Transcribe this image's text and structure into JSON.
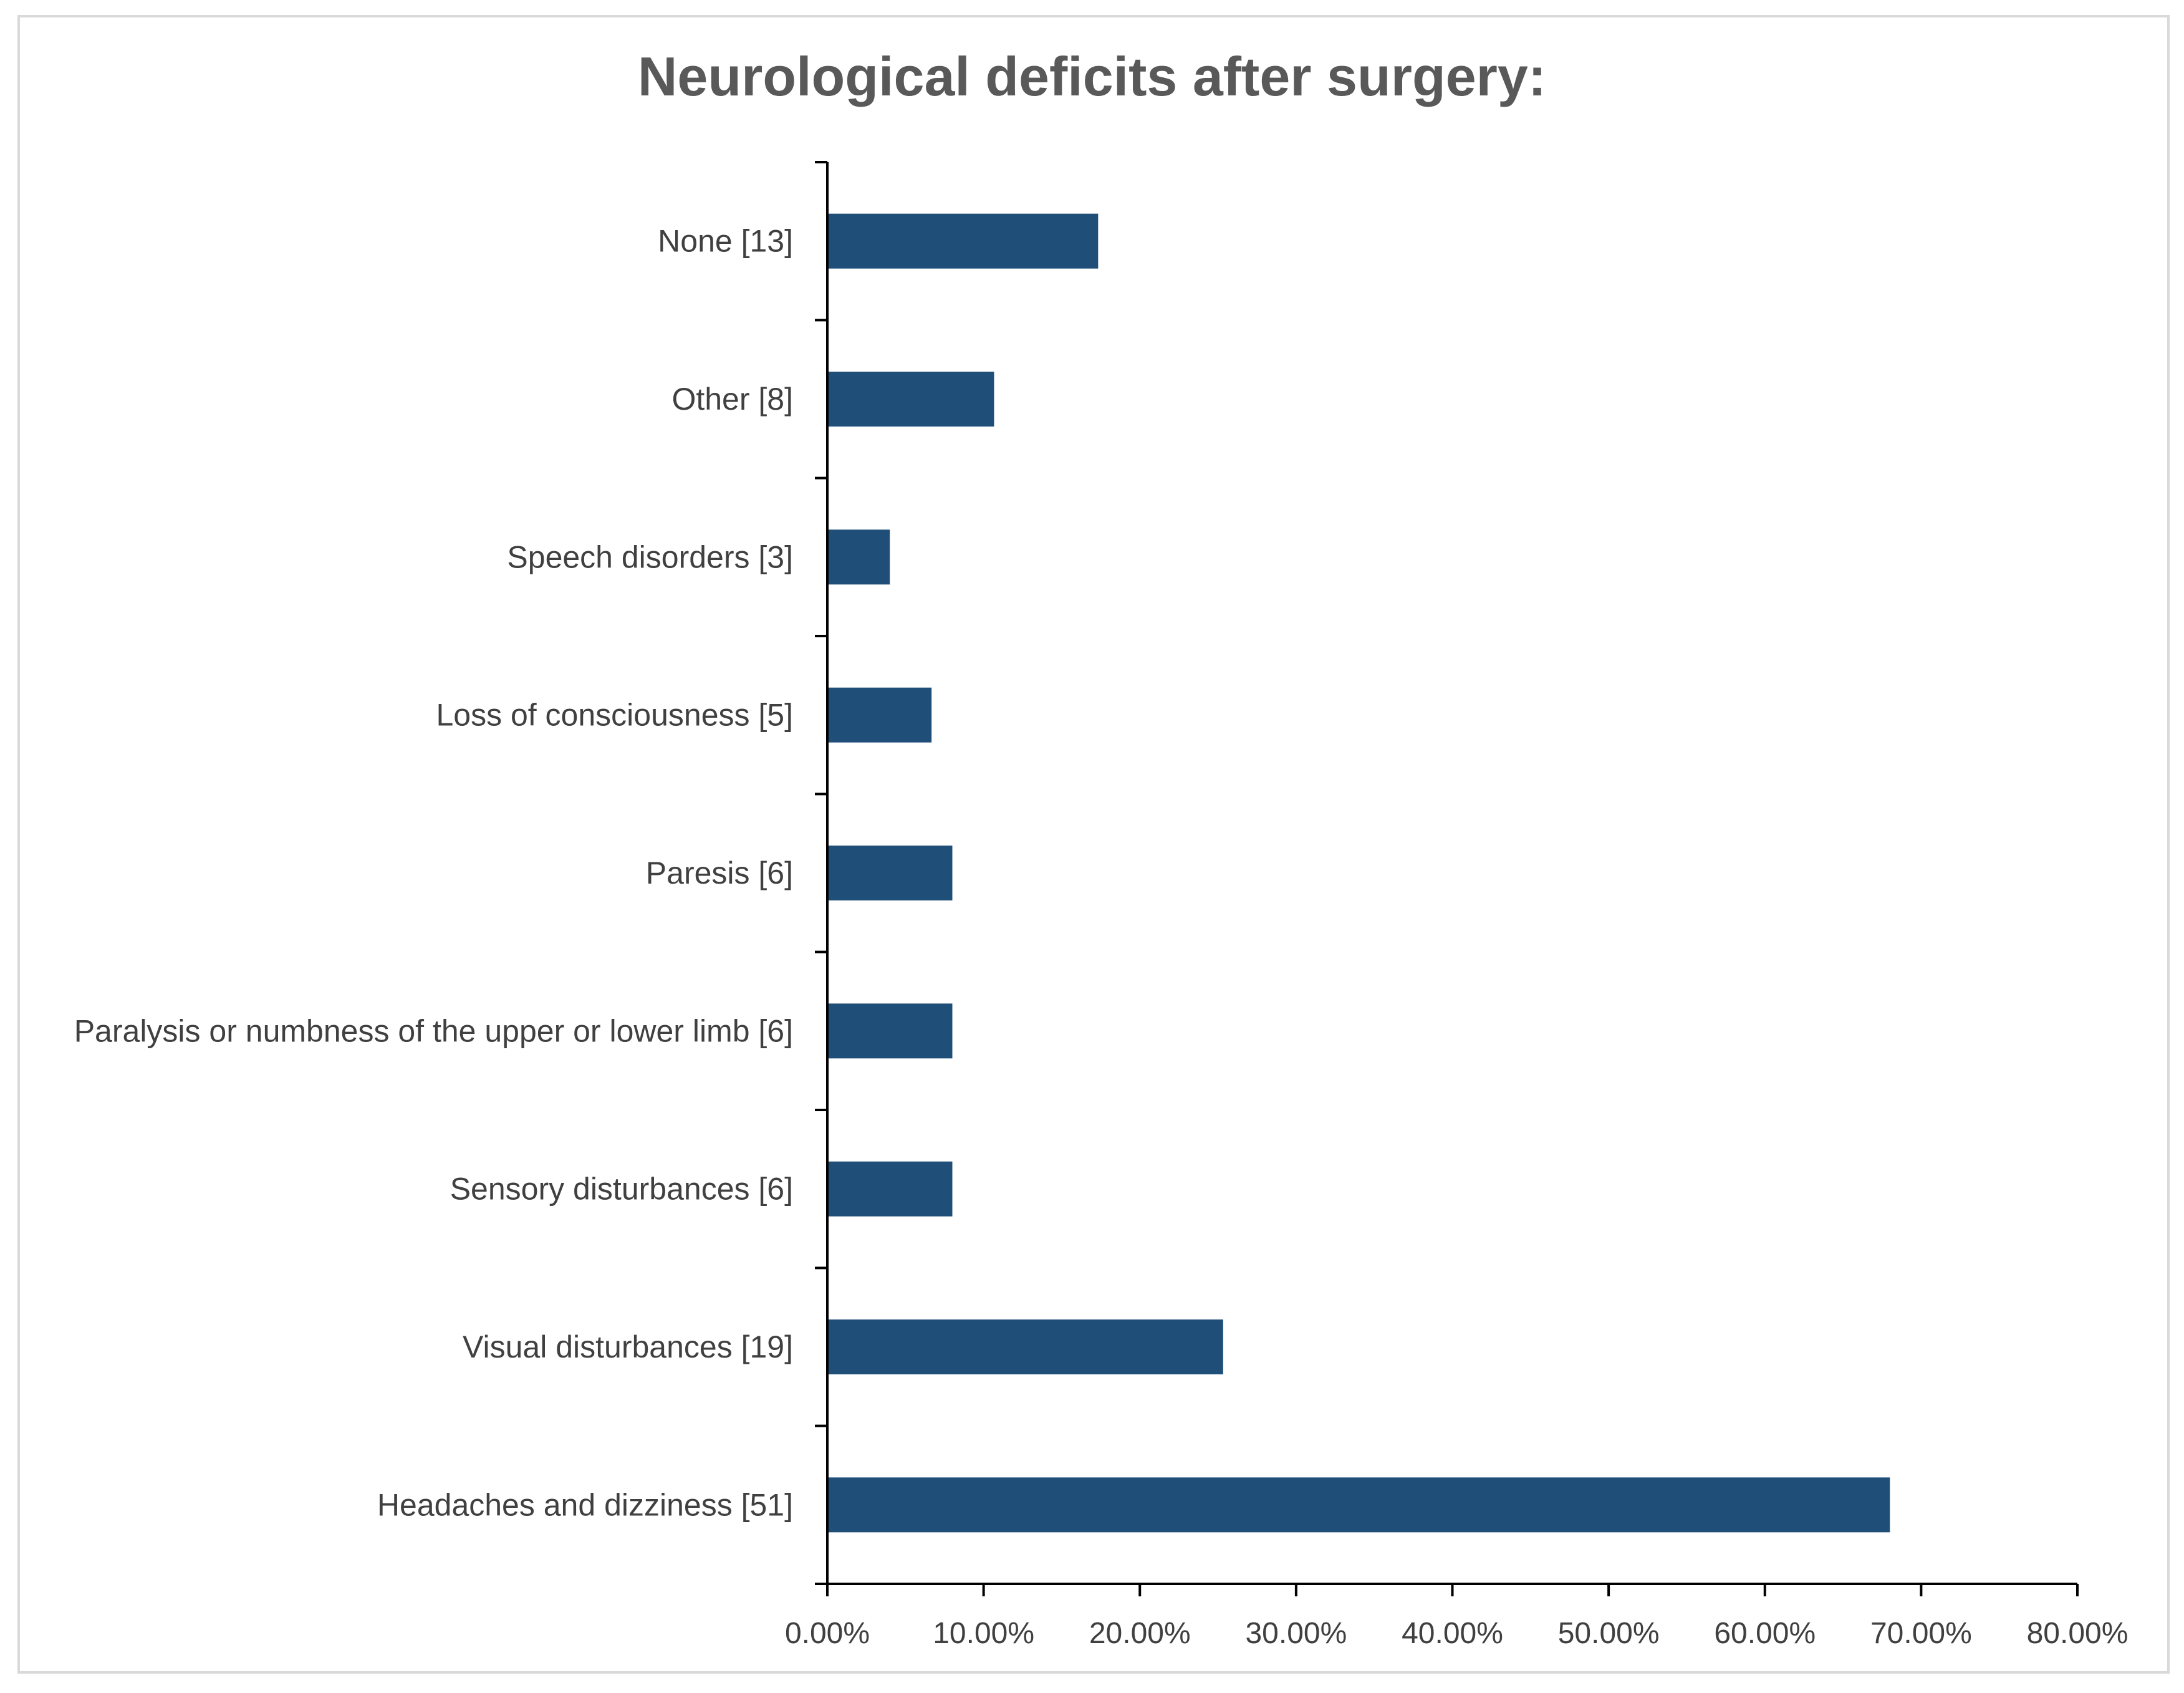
{
  "chart_data": {
    "type": "bar",
    "orientation": "horizontal",
    "title": "Neurological deficits after surgery:",
    "xlabel": "",
    "ylabel": "",
    "categories": [
      "Headaches and dizziness [51]",
      "Visual disturbances [19]",
      "Sensory disturbances  [6]",
      "Paralysis or numbness of the upper or lower limb [6]",
      "Paresis [6]",
      "Loss of consciousness [5]",
      "Speech disorders [3]",
      "Other [8]",
      "None [13]"
    ],
    "values": [
      68.0,
      25.33,
      8.0,
      8.0,
      8.0,
      6.67,
      4.0,
      10.67,
      17.33
    ],
    "value_unit": "percent",
    "xlim": [
      0,
      80
    ],
    "xticks": [
      "0.00%",
      "10.00%",
      "20.00%",
      "30.00%",
      "40.00%",
      "50.00%",
      "60.00%",
      "70.00%",
      "80.00%"
    ],
    "bar_color": "#1f4e79",
    "axis_color": "#000000",
    "grid": false,
    "legend": "none"
  }
}
